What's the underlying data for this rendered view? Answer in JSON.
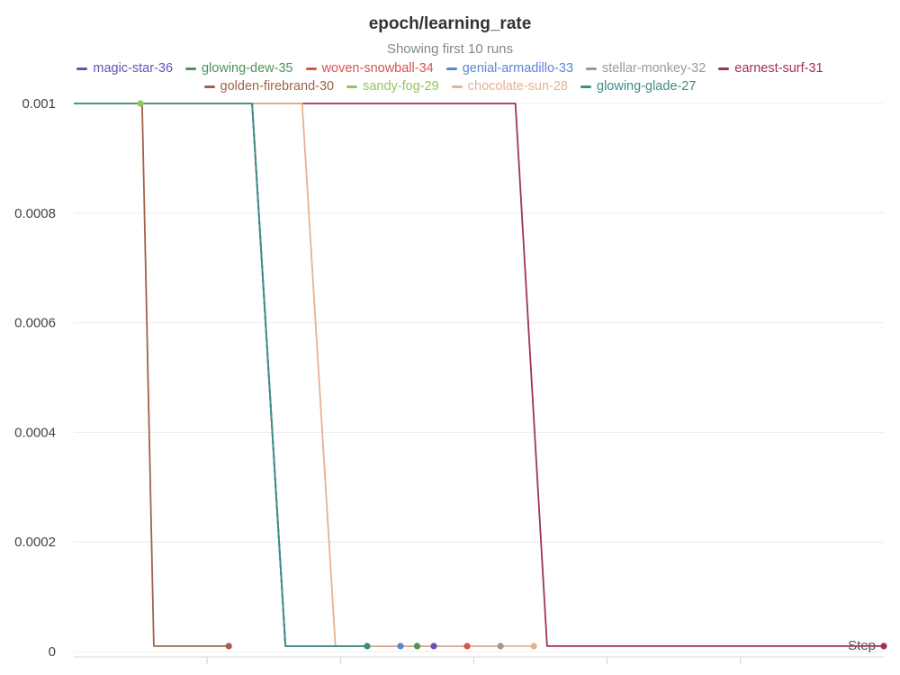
{
  "chart_data": {
    "type": "line",
    "title": "epoch/learning_rate",
    "subtitle": "Showing first 10 runs",
    "xlabel": "Step",
    "ylabel": "",
    "ylim": [
      0,
      0.001
    ],
    "yticks": [
      "0.001",
      "0.0008",
      "0.0006",
      "0.0004",
      "0.0002",
      "0"
    ],
    "ytick_values": [
      0.001,
      0.0008,
      0.0006,
      0.0004,
      0.0002,
      0
    ],
    "grid": true,
    "legend_position": "top",
    "series": [
      {
        "name": "magic-star-36",
        "color": "#6a4fb8",
        "x": [
          0,
          107,
          127,
          216
        ],
        "y": [
          0.001,
          0.001,
          1e-05,
          1e-05
        ],
        "end_marker": true
      },
      {
        "name": "glowing-dew-35",
        "color": "#4f9455",
        "x": [
          0,
          107,
          127,
          206
        ],
        "y": [
          0.001,
          0.001,
          1e-05,
          1e-05
        ],
        "end_marker": true
      },
      {
        "name": "woven-snowball-34",
        "color": "#d9534f",
        "x": [
          0,
          107,
          127,
          236
        ],
        "y": [
          0.001,
          0.001,
          1e-05,
          1e-05
        ],
        "end_marker": true
      },
      {
        "name": "genial-armadillo-33",
        "color": "#5b86d6",
        "x": [
          0,
          107,
          127,
          196
        ],
        "y": [
          0.001,
          0.001,
          1e-05,
          1e-05
        ],
        "end_marker": true
      },
      {
        "name": "stellar-monkey-32",
        "color": "#9a9a9a",
        "x": [
          0,
          107,
          127,
          256
        ],
        "y": [
          0.001,
          0.001,
          1e-05,
          1e-05
        ],
        "end_marker": true
      },
      {
        "name": "earnest-surf-31",
        "color": "#a0305e",
        "x": [
          0,
          265,
          284,
          486
        ],
        "y": [
          0.001,
          0.001,
          1e-05,
          1e-05
        ],
        "end_marker": true
      },
      {
        "name": "golden-firebrand-30",
        "color": "#a0624a",
        "x": [
          0,
          41,
          48,
          93
        ],
        "y": [
          0.001,
          0.001,
          1e-05,
          1e-05
        ],
        "end_marker": true
      },
      {
        "name": "sandy-fog-29",
        "color": "#8fc75a",
        "x": [
          0,
          40
        ],
        "y": [
          0.001,
          0.001
        ],
        "end_marker": true
      },
      {
        "name": "chocolate-sun-28",
        "color": "#e8b18f",
        "x": [
          0,
          137,
          157,
          276
        ],
        "y": [
          0.001,
          0.001,
          1e-05,
          1e-05
        ],
        "end_marker": true
      },
      {
        "name": "glowing-glade-27",
        "color": "#3a8f86",
        "x": [
          0,
          107,
          127,
          176
        ],
        "y": [
          0.001,
          0.001,
          1e-05,
          1e-05
        ],
        "end_marker": true
      }
    ],
    "xlim": [
      0,
      486
    ]
  }
}
